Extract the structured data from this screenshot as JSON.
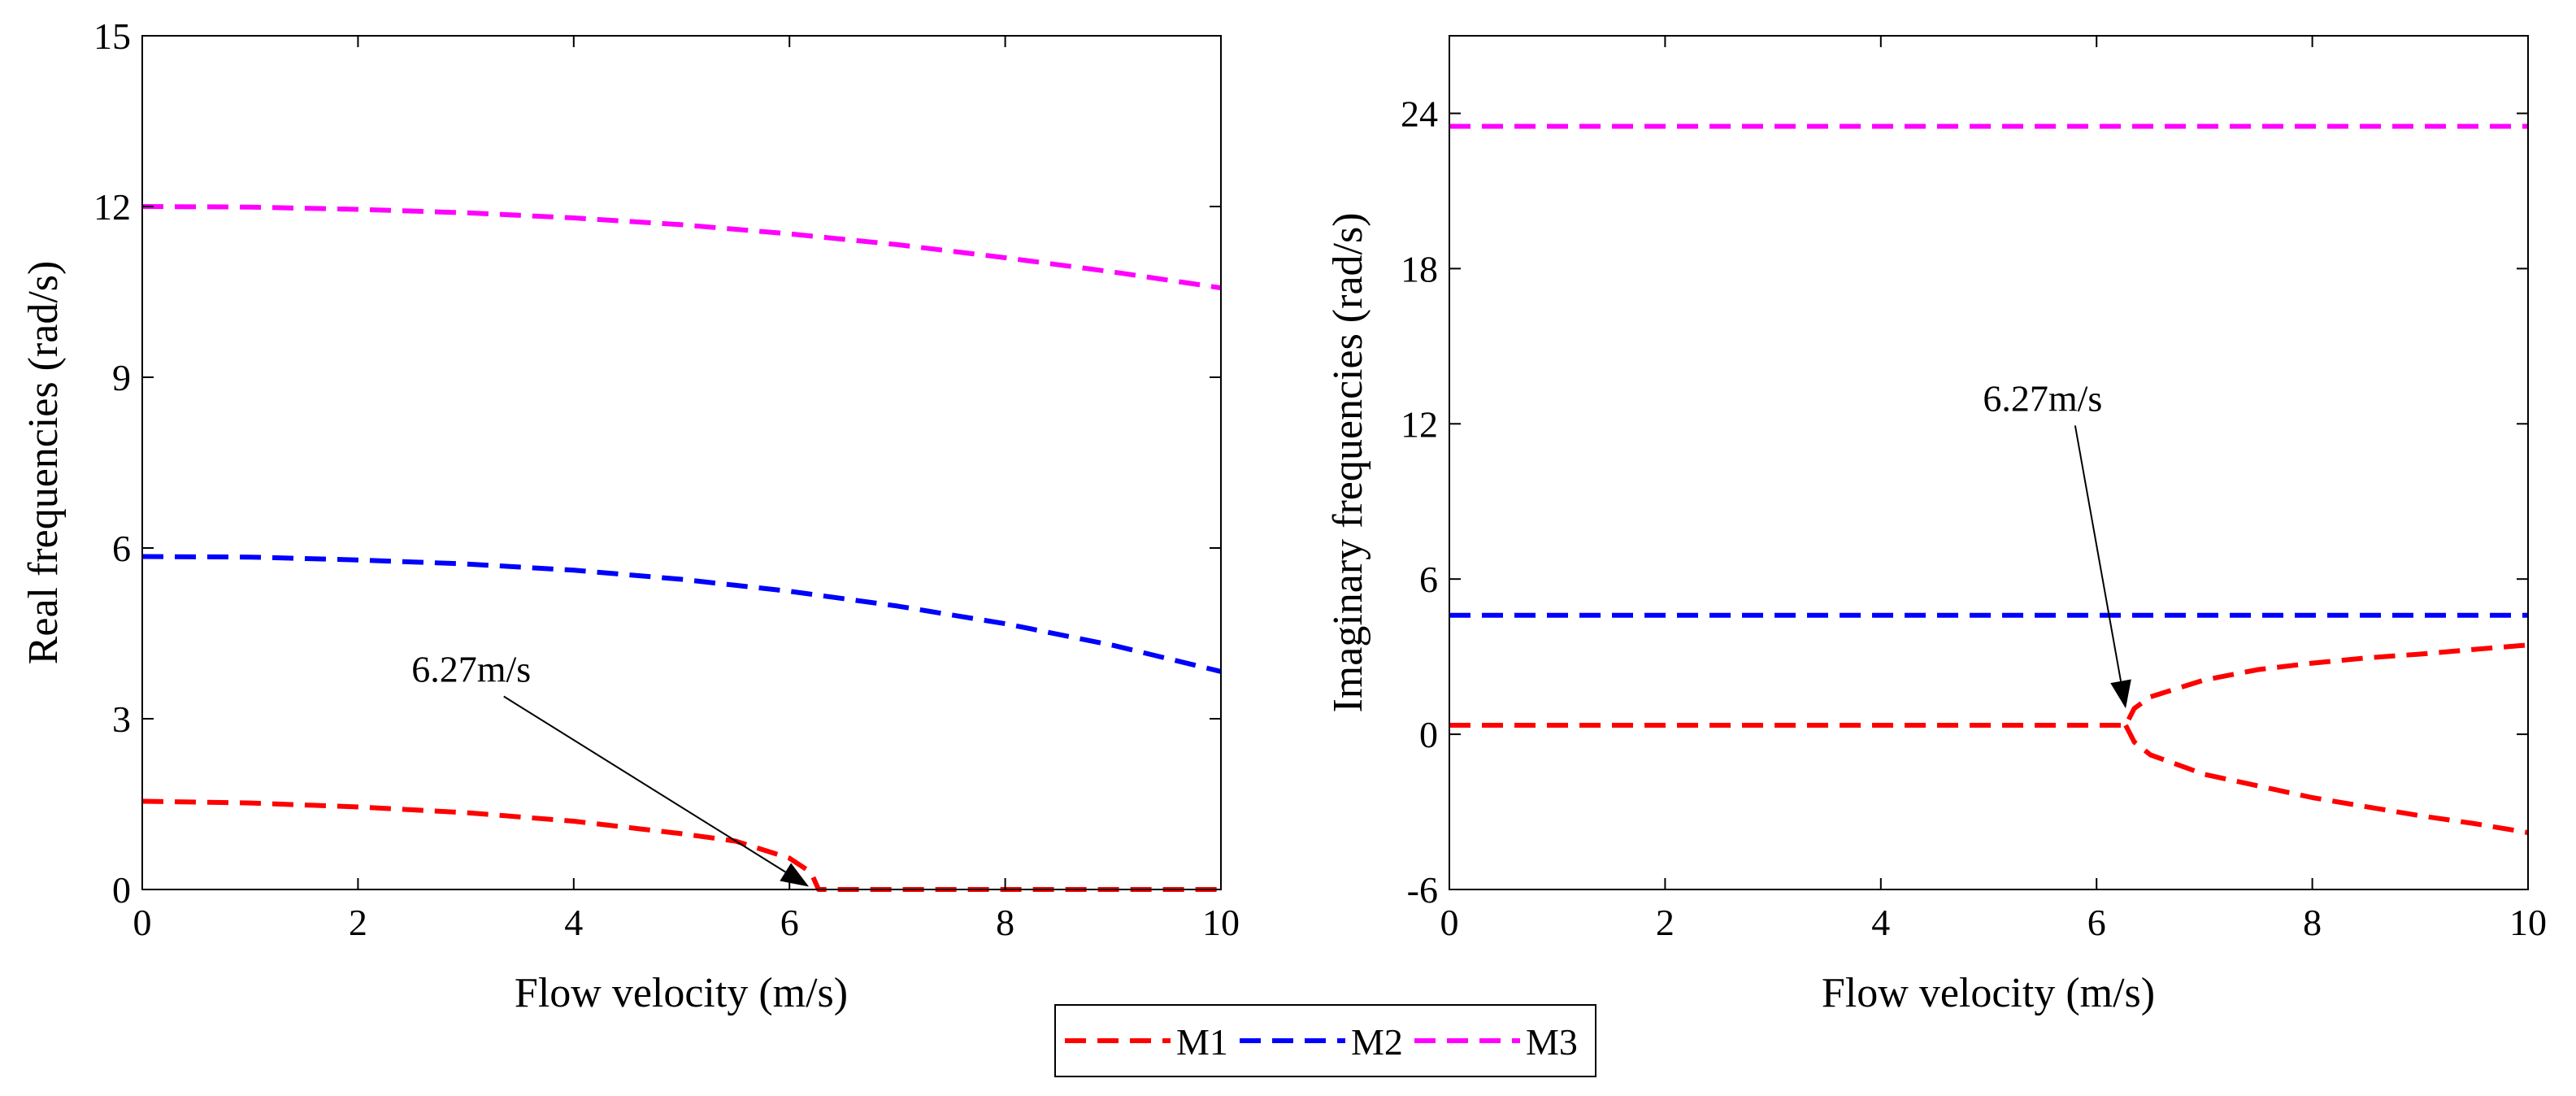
{
  "chart_data": [
    {
      "type": "line",
      "panel": "left",
      "xlabel": "Flow velocity (m/s)",
      "ylabel": "Real frequencies (rad/s)",
      "xlim": [
        0,
        10
      ],
      "ylim": [
        0,
        15
      ],
      "xticks": [
        0,
        2,
        4,
        6,
        8,
        10
      ],
      "yticks": [
        0,
        3,
        6,
        9,
        12,
        15
      ],
      "annotation": {
        "text": "6.27m/s",
        "text_at": [
          3.05,
          3.65
        ],
        "arrow_to": [
          6.18,
          0.05
        ]
      },
      "series": [
        {
          "name": "M1",
          "color": "#ff0000",
          "x": [
            0,
            1,
            2,
            3,
            4,
            5,
            5.5,
            6.0,
            6.2,
            6.27,
            6.3,
            10
          ],
          "y": [
            1.55,
            1.52,
            1.45,
            1.35,
            1.2,
            0.98,
            0.85,
            0.55,
            0.3,
            0.0,
            0.0,
            0.0
          ]
        },
        {
          "name": "M2",
          "color": "#0000ff",
          "x": [
            0,
            1,
            2,
            3,
            4,
            5,
            6,
            7,
            8,
            9,
            10
          ],
          "y": [
            5.85,
            5.84,
            5.79,
            5.72,
            5.61,
            5.45,
            5.24,
            4.98,
            4.67,
            4.29,
            3.83
          ]
        },
        {
          "name": "M3",
          "color": "#ff00ff",
          "x": [
            0,
            1,
            2,
            3,
            4,
            5,
            6,
            7,
            8,
            9,
            10
          ],
          "y": [
            12.0,
            11.99,
            11.95,
            11.89,
            11.8,
            11.68,
            11.52,
            11.33,
            11.1,
            10.85,
            10.57
          ]
        }
      ]
    },
    {
      "type": "line",
      "panel": "right",
      "xlabel": "Flow velocity (m/s)",
      "ylabel": "Imaginary frequencies (rad/s)",
      "xlim": [
        0,
        10
      ],
      "ylim": [
        -6,
        27
      ],
      "xticks": [
        0,
        2,
        4,
        6,
        8,
        10
      ],
      "yticks": [
        -6,
        0,
        6,
        12,
        18,
        24
      ],
      "annotation": {
        "text": "6.27m/s",
        "text_at": [
          5.5,
          12.5
        ],
        "arrow_to": [
          6.27,
          1.0
        ]
      },
      "series": [
        {
          "name": "M1",
          "color": "#ff0000",
          "x": [
            0,
            6.27,
            6.35,
            6.5,
            7,
            7.5,
            8,
            8.5,
            9,
            9.5,
            10
          ],
          "y": [
            0.35,
            0.35,
            1.0,
            1.45,
            2.1,
            2.5,
            2.75,
            2.95,
            3.1,
            3.28,
            3.45
          ]
        },
        {
          "name": "M1",
          "color": "#ff0000",
          "x": [
            6.27,
            6.35,
            6.5,
            7,
            7.5,
            8,
            8.5,
            9,
            9.5,
            10
          ],
          "y": [
            0.35,
            -0.3,
            -0.8,
            -1.55,
            -2.0,
            -2.45,
            -2.8,
            -3.15,
            -3.45,
            -3.8
          ]
        },
        {
          "name": "M2",
          "color": "#0000ff",
          "x": [
            0,
            10
          ],
          "y": [
            4.6,
            4.6
          ]
        },
        {
          "name": "M3",
          "color": "#ff00ff",
          "x": [
            0,
            10
          ],
          "y": [
            23.5,
            23.5
          ]
        }
      ]
    }
  ],
  "legend": {
    "placement": "bottom-center",
    "entries": [
      {
        "label": "M1",
        "color": "#ff0000"
      },
      {
        "label": "M2",
        "color": "#0000ff"
      },
      {
        "label": "M3",
        "color": "#ff00ff"
      }
    ]
  }
}
